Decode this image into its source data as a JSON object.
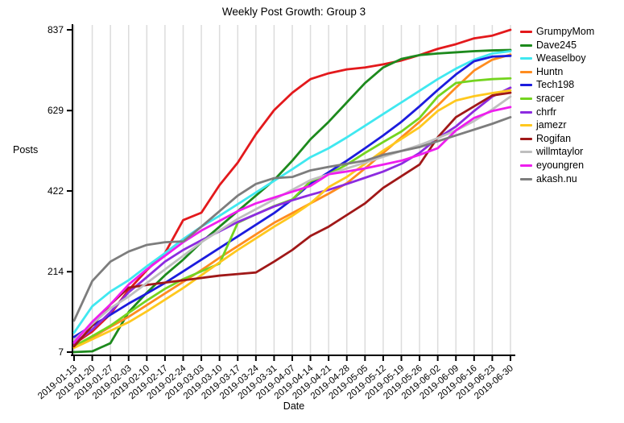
{
  "chart": {
    "title": "Weekly Post Growth: Group 3",
    "xlabel": "Date",
    "ylabel": "Posts"
  },
  "chart_data": {
    "type": "line",
    "title": "Weekly Post Growth: Group 3",
    "xlabel": "Date",
    "ylabel": "Posts",
    "ylim": [
      7,
      837
    ],
    "yticks": [
      7,
      214,
      422,
      629,
      837
    ],
    "grid": "vertical-only",
    "gridline_color": "#dcdcdc",
    "legend_position": "outside-right",
    "x": [
      "2019-01-13",
      "2019-01-20",
      "2019-01-27",
      "2019-02-03",
      "2019-02-10",
      "2019-02-17",
      "2019-02-24",
      "2019-03-03",
      "2019-03-10",
      "2019-03-17",
      "2019-03-24",
      "2019-03-31",
      "2019-04-07",
      "2019-04-14",
      "2019-04-21",
      "2019-04-28",
      "2019-05-05",
      "2019-05-12",
      "2019-05-19",
      "2019-05-26",
      "2019-06-02",
      "2019-06-09",
      "2019-06-16",
      "2019-06-23",
      "2019-06-30"
    ],
    "series": [
      {
        "name": "GrumpyMom",
        "color": "#e3191c",
        "values": [
          28,
          60,
          105,
          167,
          218,
          262,
          347,
          366,
          437,
          495,
          568,
          630,
          675,
          710,
          725,
          735,
          740,
          748,
          758,
          772,
          788,
          800,
          815,
          822,
          837
        ]
      },
      {
        "name": "Dave245",
        "color": "#1d8a1d",
        "values": [
          7,
          9,
          30,
          110,
          160,
          205,
          245,
          290,
          330,
          370,
          410,
          450,
          500,
          555,
          600,
          650,
          700,
          740,
          762,
          772,
          776,
          779,
          782,
          784,
          785
        ]
      },
      {
        "name": "Weaselboy",
        "color": "#40e8f0",
        "values": [
          57,
          125,
          163,
          192,
          228,
          262,
          298,
          330,
          358,
          388,
          418,
          448,
          478,
          509,
          532,
          560,
          590,
          620,
          650,
          680,
          710,
          737,
          760,
          776,
          782
        ]
      },
      {
        "name": "Huntn",
        "color": "#ff8c1f",
        "values": [
          20,
          45,
          72,
          98,
          128,
          158,
          188,
          218,
          250,
          280,
          310,
          340,
          365,
          390,
          415,
          442,
          480,
          520,
          560,
          600,
          642,
          688,
          732,
          760,
          773
        ]
      },
      {
        "name": "Tech198",
        "color": "#1c1cdd",
        "values": [
          46,
          75,
          103,
          132,
          158,
          185,
          215,
          245,
          275,
          305,
          335,
          365,
          400,
          441,
          470,
          500,
          532,
          565,
          600,
          640,
          682,
          722,
          756,
          768,
          770
        ]
      },
      {
        "name": "sracer",
        "color": "#74d41f",
        "values": [
          22,
          48,
          75,
          108,
          140,
          170,
          195,
          215,
          235,
          340,
          362,
          383,
          400,
          447,
          465,
          490,
          520,
          548,
          575,
          610,
          665,
          700,
          706,
          710,
          712
        ]
      },
      {
        "name": "chrfr",
        "color": "#8c2be0",
        "values": [
          30,
          65,
          110,
          161,
          200,
          240,
          270,
          295,
          318,
          342,
          362,
          382,
          398,
          412,
          425,
          440,
          456,
          472,
          492,
          520,
          558,
          588,
          628,
          665,
          688
        ]
      },
      {
        "name": "jamezr",
        "color": "#ffc81e",
        "values": [
          18,
          40,
          62,
          84,
          112,
          142,
          172,
          205,
          238,
          270,
          300,
          330,
          358,
          390,
          432,
          458,
          492,
          526,
          556,
          586,
          628,
          655,
          666,
          674,
          681
        ]
      },
      {
        "name": "Rogifan",
        "color": "#a01818",
        "values": [
          22,
          75,
          130,
          173,
          180,
          186,
          192,
          198,
          204,
          208,
          212,
          240,
          270,
          306,
          330,
          360,
          390,
          430,
          460,
          490,
          560,
          612,
          640,
          668,
          675
        ]
      },
      {
        "name": "willmtaylor",
        "color": "#bfbfbf",
        "values": [
          38,
          80,
          120,
          150,
          185,
          220,
          255,
          290,
          320,
          350,
          375,
          400,
          425,
          450,
          465,
          480,
          495,
          510,
          525,
          540,
          558,
          578,
          602,
          632,
          665
        ]
      },
      {
        "name": "eyoungren",
        "color": "#ee1eee",
        "values": [
          32,
          85,
          130,
          181,
          220,
          255,
          290,
          320,
          345,
          370,
          390,
          405,
          420,
          435,
          465,
          472,
          480,
          490,
          500,
          515,
          532,
          578,
          610,
          628,
          638
        ]
      },
      {
        "name": "akash.nu",
        "color": "#7d7d7d",
        "values": [
          88,
          190,
          240,
          266,
          283,
          290,
          292,
          330,
          370,
          410,
          440,
          455,
          458,
          475,
          484,
          492,
          500,
          515,
          525,
          535,
          550,
          565,
          580,
          595,
          612
        ]
      }
    ]
  }
}
